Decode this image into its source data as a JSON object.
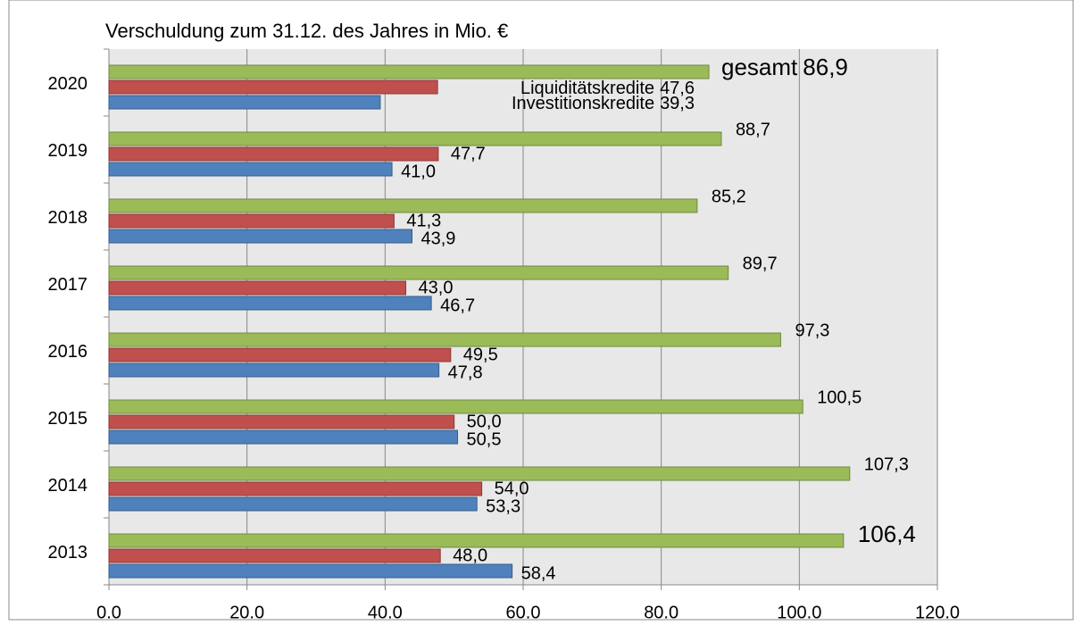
{
  "chart_data": {
    "type": "hbar",
    "title": "Verschuldung zum 31.12. des Jahres in Mio. €",
    "categories": [
      "2020",
      "2019",
      "2018",
      "2017",
      "2016",
      "2015",
      "2014",
      "2013"
    ],
    "series": [
      {
        "name": "gesamt",
        "color": "#9bbb59",
        "values": [
          86.9,
          88.7,
          85.2,
          89.7,
          97.3,
          100.5,
          107.3,
          106.4
        ],
        "value_labels": [
          "86,9",
          "88,7",
          "85,2",
          "89,7",
          "97,3",
          "100,5",
          "107,3",
          "106,4"
        ]
      },
      {
        "name": "Liquiditätskredite",
        "color": "#c0504d",
        "values": [
          47.6,
          47.7,
          41.3,
          43.0,
          49.5,
          50.0,
          54.0,
          48.0
        ],
        "value_labels": [
          "47,6",
          "47,7",
          "41,3",
          "43,0",
          "49,5",
          "50,0",
          "54,0",
          "48,0"
        ]
      },
      {
        "name": "Investitionskredite",
        "color": "#4f81bd",
        "values": [
          39.3,
          41.0,
          43.9,
          46.7,
          47.8,
          50.5,
          53.3,
          58.4
        ],
        "value_labels": [
          "39,3",
          "41,0",
          "43,9",
          "46,7",
          "47,8",
          "50,5",
          "53,3",
          "58,4"
        ]
      }
    ],
    "xlim": [
      0,
      120
    ],
    "xticks": [
      {
        "value": 0,
        "label": "0.0"
      },
      {
        "value": 20,
        "label": "20.0"
      },
      {
        "value": 40,
        "label": "40.0"
      },
      {
        "value": 60,
        "label": "60.0"
      },
      {
        "value": 80,
        "label": "80.0"
      },
      {
        "value": 100,
        "label": "100.0"
      },
      {
        "value": 120,
        "label": "120.0"
      }
    ],
    "grid": true
  }
}
